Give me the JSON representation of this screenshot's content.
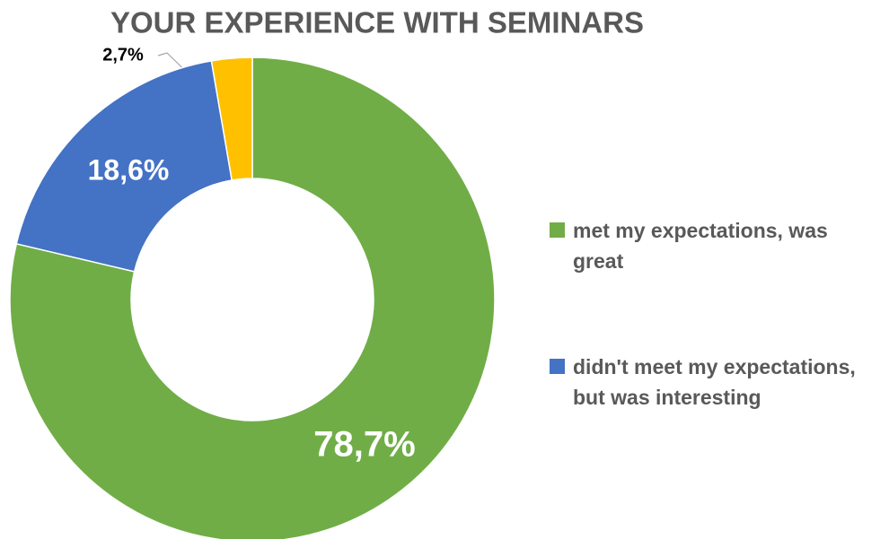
{
  "chart_data": {
    "type": "donut",
    "title": "YOUR EXPERIENCE WITH SEMINARS",
    "categories": [
      "met my expectations, was great",
      "didn't meet my expectations, but was interesting",
      null
    ],
    "values": [
      78.7,
      18.6,
      2.7
    ],
    "value_labels": [
      "78,7%",
      "18,6%",
      "2,7%"
    ],
    "colors": [
      "#70ad47",
      "#4472c4",
      "#ffc000"
    ],
    "legend": "right"
  }
}
